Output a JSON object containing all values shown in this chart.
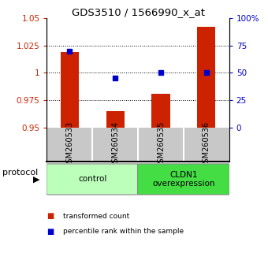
{
  "title": "GDS3510 / 1566990_x_at",
  "samples": [
    "GSM260533",
    "GSM260534",
    "GSM260535",
    "GSM260536"
  ],
  "transformed_counts": [
    1.019,
    0.965,
    0.981,
    1.042
  ],
  "percentile_ranks": [
    70,
    45,
    50,
    50
  ],
  "ylim_left": [
    0.95,
    1.05
  ],
  "ylim_right": [
    0,
    100
  ],
  "yticks_left": [
    0.95,
    0.975,
    1.0,
    1.025,
    1.05
  ],
  "yticks_right": [
    0,
    25,
    50,
    75,
    100
  ],
  "ytick_labels_left": [
    "0.95",
    "0.975",
    "1",
    "1.025",
    "1.05"
  ],
  "ytick_labels_right": [
    "0",
    "25",
    "50",
    "75",
    "100%"
  ],
  "bar_color": "#cc2200",
  "dot_color": "#0000cc",
  "grid_lines": [
    0.975,
    1.0,
    1.025
  ],
  "groups": [
    {
      "label": "control",
      "samples": [
        0,
        1
      ],
      "color": "#bbffbb"
    },
    {
      "label": "CLDN1\noverexpression",
      "samples": [
        2,
        3
      ],
      "color": "#44dd44"
    }
  ],
  "legend_items": [
    {
      "color": "#cc2200",
      "label": "transformed count"
    },
    {
      "color": "#0000cc",
      "label": "percentile rank within the sample"
    }
  ],
  "protocol_label": "protocol",
  "background_color": "#ffffff",
  "plot_bg_color": "#ffffff",
  "sample_box_color": "#c8c8c8"
}
